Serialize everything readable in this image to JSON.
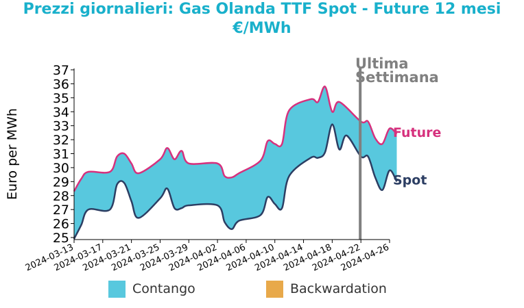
{
  "title_line1": "Prezzi giornalieri: Gas Olanda TTF Spot - Future 12 mesi",
  "title_line2": "€/MWh",
  "colors": {
    "title": "#19b0cb",
    "contango": "#58c8de",
    "backwardation": "#e8a94a",
    "future": "#d6317d",
    "spot": "#2c3e63",
    "marker": "#808080"
  },
  "chart_data": {
    "type": "area",
    "ylabel": "Euro per MWh",
    "xlabel": "",
    "ylim": [
      25,
      37
    ],
    "yticks": [
      25,
      26,
      27,
      28,
      29,
      30,
      31,
      32,
      33,
      34,
      35,
      36,
      37
    ],
    "xlim": [
      "2024-03-13",
      "2024-04-26"
    ],
    "xticks": [
      "2024-03-13",
      "2024-03-17",
      "2024-03-21",
      "2024-03-25",
      "2024-03-29",
      "2024-04-02",
      "2024-04-06",
      "2024-04-10",
      "2024-04-14",
      "2024-04-18",
      "2024-04-22",
      "2024-04-26"
    ],
    "annotation": {
      "text_line1": "Ultima",
      "text_line2": "Settimana",
      "date": "2024-04-22"
    },
    "series": [
      {
        "name": "Future",
        "points": [
          [
            "2024-03-13",
            28.3
          ],
          [
            "2024-03-14",
            29.2
          ],
          [
            "2024-03-15",
            29.7
          ],
          [
            "2024-03-18",
            29.7
          ],
          [
            "2024-03-19",
            30.8
          ],
          [
            "2024-03-20",
            31.0
          ],
          [
            "2024-03-21",
            30.3
          ],
          [
            "2024-03-22",
            29.6
          ],
          [
            "2024-03-25",
            30.6
          ],
          [
            "2024-03-26",
            31.4
          ],
          [
            "2024-03-27",
            30.6
          ],
          [
            "2024-03-28",
            31.2
          ],
          [
            "2024-03-29",
            30.3
          ],
          [
            "2024-04-02",
            30.3
          ],
          [
            "2024-04-03",
            29.4
          ],
          [
            "2024-04-04",
            29.3
          ],
          [
            "2024-04-05",
            29.6
          ],
          [
            "2024-04-08",
            30.5
          ],
          [
            "2024-04-09",
            31.9
          ],
          [
            "2024-04-10",
            31.7
          ],
          [
            "2024-04-11",
            31.7
          ],
          [
            "2024-04-12",
            34.1
          ],
          [
            "2024-04-15",
            34.9
          ],
          [
            "2024-04-16",
            34.7
          ],
          [
            "2024-04-17",
            35.8
          ],
          [
            "2024-04-18",
            34.0
          ],
          [
            "2024-04-19",
            34.7
          ],
          [
            "2024-04-22",
            33.3
          ],
          [
            "2024-04-23",
            33.3
          ],
          [
            "2024-04-24",
            32.1
          ],
          [
            "2024-04-25",
            31.7
          ],
          [
            "2024-04-26",
            32.8
          ],
          [
            "2024-04-27",
            32.4
          ]
        ]
      },
      {
        "name": "Spot",
        "points": [
          [
            "2024-03-13",
            24.9
          ],
          [
            "2024-03-14",
            25.9
          ],
          [
            "2024-03-15",
            27.0
          ],
          [
            "2024-03-18",
            27.0
          ],
          [
            "2024-03-19",
            28.8
          ],
          [
            "2024-03-20",
            28.9
          ],
          [
            "2024-03-21",
            27.6
          ],
          [
            "2024-03-22",
            26.4
          ],
          [
            "2024-03-25",
            27.8
          ],
          [
            "2024-03-26",
            28.5
          ],
          [
            "2024-03-27",
            27.1
          ],
          [
            "2024-03-28",
            27.1
          ],
          [
            "2024-03-29",
            27.3
          ],
          [
            "2024-04-02",
            27.3
          ],
          [
            "2024-04-03",
            26.1
          ],
          [
            "2024-04-04",
            25.6
          ],
          [
            "2024-04-05",
            26.2
          ],
          [
            "2024-04-08",
            26.6
          ],
          [
            "2024-04-09",
            27.9
          ],
          [
            "2024-04-10",
            27.4
          ],
          [
            "2024-04-11",
            27.1
          ],
          [
            "2024-04-12",
            29.4
          ],
          [
            "2024-04-15",
            30.7
          ],
          [
            "2024-04-16",
            30.7
          ],
          [
            "2024-04-17",
            31.1
          ],
          [
            "2024-04-18",
            33.1
          ],
          [
            "2024-04-19",
            31.3
          ],
          [
            "2024-04-20",
            32.3
          ],
          [
            "2024-04-22",
            30.8
          ],
          [
            "2024-04-23",
            30.8
          ],
          [
            "2024-04-24",
            29.3
          ],
          [
            "2024-04-25",
            28.4
          ],
          [
            "2024-04-26",
            29.8
          ],
          [
            "2024-04-27",
            29.0
          ]
        ]
      }
    ],
    "legend": [
      "Contango",
      "Backwardation"
    ],
    "legend_position": "bottom"
  }
}
